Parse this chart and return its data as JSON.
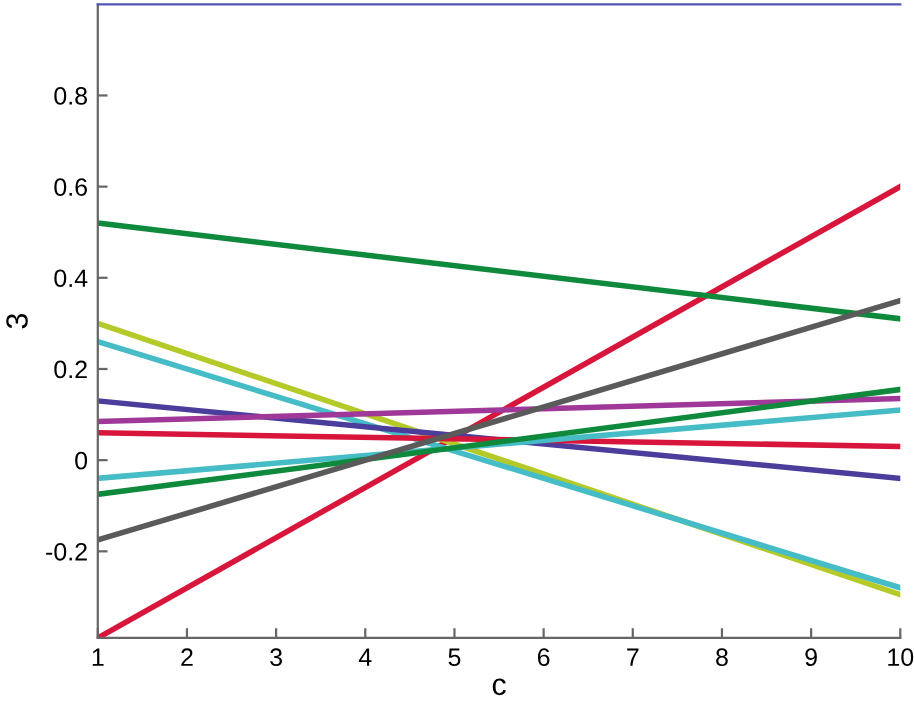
{
  "chart_data": {
    "type": "line",
    "xlabel": "c",
    "ylabel": "3",
    "xlim": [
      1,
      10
    ],
    "ylim": [
      -0.39,
      1.0
    ],
    "xticks": [
      1,
      2,
      3,
      4,
      5,
      6,
      7,
      8,
      9,
      10
    ],
    "yticks": [
      -0.2,
      0,
      0.2,
      0.4,
      0.6,
      0.8
    ],
    "x": [
      1,
      10
    ],
    "grid": false,
    "legend": false,
    "marker": "none",
    "line_style": "solid",
    "series": [
      {
        "color": "#d8163c",
        "values": [
          -0.39,
          0.6
        ]
      },
      {
        "color": "#0f8a3c",
        "values": [
          0.52,
          0.31
        ]
      },
      {
        "color": "#b5c928",
        "values": [
          0.3,
          -0.295
        ]
      },
      {
        "color": "#45bcc6",
        "values": [
          0.26,
          -0.28
        ]
      },
      {
        "color": "#4a3d9c",
        "values": [
          0.13,
          -0.04
        ]
      },
      {
        "color": "#a0389a",
        "values": [
          0.085,
          0.135
        ]
      },
      {
        "color": "#d8163c",
        "values": [
          0.06,
          0.03
        ]
      },
      {
        "color": "#45bcc6",
        "values": [
          -0.04,
          0.11
        ]
      },
      {
        "color": "#0f8a3c",
        "values": [
          -0.075,
          0.155
        ]
      },
      {
        "color": "#5a5a5a",
        "values": [
          -0.175,
          0.35
        ]
      }
    ]
  }
}
